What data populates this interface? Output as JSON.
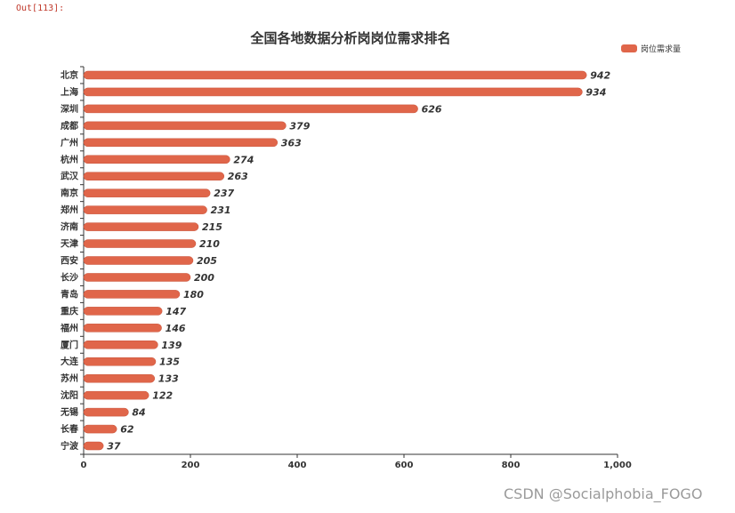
{
  "notebook": {
    "out_prompt": "Out[113]:"
  },
  "watermark": "CSDN @Socialphobia_FOGO",
  "colors": {
    "bar": "#e0664a",
    "bar_dark": "#c9533a"
  },
  "chart_data": {
    "type": "bar",
    "orientation": "horizontal",
    "title": "全国各地数据分析岗岗位需求排名",
    "legend": {
      "label": "岗位需求量",
      "position": "top-right"
    },
    "categories": [
      "北京",
      "上海",
      "深圳",
      "成都",
      "广州",
      "杭州",
      "武汉",
      "南京",
      "郑州",
      "济南",
      "天津",
      "西安",
      "长沙",
      "青岛",
      "重庆",
      "福州",
      "厦门",
      "大连",
      "苏州",
      "沈阳",
      "无锡",
      "长春",
      "宁波"
    ],
    "values": [
      942,
      934,
      626,
      379,
      363,
      274,
      263,
      237,
      231,
      215,
      210,
      205,
      200,
      180,
      147,
      146,
      139,
      135,
      133,
      122,
      84,
      62,
      37
    ],
    "xlim": [
      0,
      1000
    ],
    "x_ticks": [
      0,
      200,
      400,
      600,
      800,
      1000
    ],
    "x_tick_labels": [
      "0",
      "200",
      "400",
      "600",
      "800",
      "1,000"
    ],
    "xlabel": "",
    "ylabel": ""
  }
}
